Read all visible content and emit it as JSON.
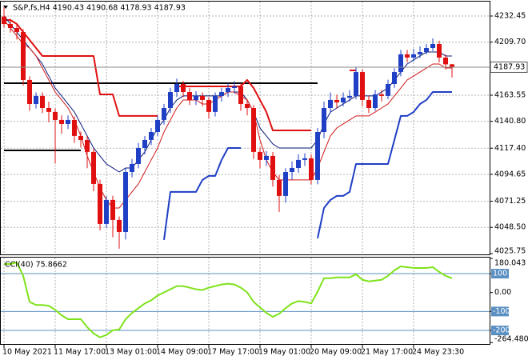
{
  "chart_data": [
    {
      "type": "candlestick",
      "title": "S&P,fs,H4  4190.43 4190.68 4178.93 4187.93",
      "categories": [
        "10 May 2021",
        null,
        null,
        null,
        null,
        null,
        null,
        null,
        "11 May 17:00",
        null,
        null,
        null,
        null,
        null,
        null,
        null,
        "13 May 01:00",
        null,
        null,
        null,
        null,
        null,
        null,
        null,
        "14 May 09:00",
        null,
        null,
        null,
        null,
        null,
        null,
        null,
        "17 May 17:00",
        null,
        null,
        null,
        null,
        null,
        null,
        null,
        "19 May 01:00",
        null,
        null,
        null,
        null,
        null,
        null,
        null,
        "20 May 09:00",
        null,
        null,
        null,
        null,
        null,
        null,
        null,
        "21 May 17:00",
        null,
        null,
        null,
        null,
        null,
        null,
        null,
        "24 May 23:30",
        null,
        null,
        null,
        null,
        null,
        null
      ],
      "open": [
        4232.0,
        4225.5,
        4222.0,
        4218.5,
        4176.8,
        4155.9,
        4162.9,
        4152.4,
        4149.0,
        4142.0,
        4138.5,
        4142.0,
        4128.1,
        4124.6,
        4114.2,
        4086.3,
        4051.5,
        4072.4,
        4055.0,
        4044.5,
        4096.7,
        4103.7,
        4117.6,
        4124.6,
        4131.5,
        4142.0,
        4152.4,
        4166.3,
        4173.3,
        4166.3,
        4159.4,
        4162.9,
        4159.4,
        4149.0,
        4162.9,
        4166.3,
        4169.8,
        4171.2,
        4155.9,
        4152.4,
        4114.2,
        4107.2,
        4110.7,
        4089.8,
        4075.9,
        4096.7,
        4100.2,
        4107.2,
        4108.6,
        4089.8,
        4131.5,
        4152.4,
        4159.4,
        4157.3,
        4161.4,
        4162.9,
        4183.7,
        4159.4,
        4152.4,
        4164.2,
        4162.9,
        4173.3,
        4183.7,
        4199.1,
        4196.3,
        4199.1,
        4201.1,
        4204.6,
        4208.1,
        4196.3,
        4190.43
      ],
      "high": [
        4240.0,
        4230.0,
        4226.0,
        4221.0,
        4180.0,
        4166.0,
        4166.0,
        4158.0,
        4152.0,
        4146.0,
        4146.0,
        4145.0,
        4132.0,
        4128.0,
        4117.0,
        4090.0,
        4076.0,
        4076.0,
        4058.0,
        4100.0,
        4108.0,
        4122.0,
        4128.0,
        4135.0,
        4146.0,
        4156.0,
        4170.0,
        4178.0,
        4176.0,
        4170.0,
        4167.0,
        4166.0,
        4162.0,
        4166.0,
        4170.0,
        4174.0,
        4176.0,
        4174.0,
        4160.0,
        4155.0,
        4118.0,
        4115.0,
        4114.0,
        4094.0,
        4100.0,
        4106.0,
        4112.0,
        4113.0,
        4112.0,
        4135.0,
        4158.0,
        4166.0,
        4164.0,
        4166.0,
        4168.0,
        4188.0,
        4186.0,
        4163.0,
        4168.0,
        4168.0,
        4177.0,
        4187.0,
        4203.0,
        4203.0,
        4204.0,
        4206.0,
        4208.0,
        4213.0,
        4211.0,
        4199.0,
        4190.68
      ],
      "low": [
        4222.5,
        4218.0,
        4212.0,
        4172.0,
        4150.0,
        4152.0,
        4148.0,
        4140.0,
        4104.0,
        4130.0,
        4134.0,
        4122.0,
        4118.0,
        4100.0,
        4080.0,
        4046.0,
        4048.0,
        4040.0,
        4030.0,
        4038.0,
        4092.0,
        4100.0,
        4112.0,
        4120.0,
        4128.0,
        4138.0,
        4148.0,
        4162.0,
        4162.0,
        4155.0,
        4155.0,
        4154.0,
        4143.0,
        4145.0,
        4158.0,
        4162.0,
        4165.0,
        4150.0,
        4146.0,
        4108.0,
        4100.0,
        4102.0,
        4084.0,
        4062.0,
        4070.0,
        4090.0,
        4096.0,
        4102.0,
        4086.0,
        4086.0,
        4126.0,
        4148.0,
        4152.0,
        4154.0,
        4158.0,
        4160.0,
        4154.0,
        4148.0,
        4150.0,
        4158.0,
        4160.0,
        4170.0,
        4180.0,
        4192.0,
        4193.0,
        4196.0,
        4199.0,
        4202.0,
        4192.0,
        4186.0,
        4178.93
      ],
      "close": [
        4225.5,
        4222.0,
        4218.5,
        4176.8,
        4155.9,
        4162.9,
        4152.4,
        4149.0,
        4142.0,
        4138.5,
        4142.0,
        4128.1,
        4124.6,
        4114.2,
        4086.3,
        4051.5,
        4072.4,
        4055.0,
        4044.5,
        4096.7,
        4103.7,
        4117.6,
        4124.6,
        4131.5,
        4142.0,
        4152.4,
        4166.3,
        4173.3,
        4166.3,
        4159.4,
        4162.9,
        4159.4,
        4149.0,
        4162.9,
        4166.3,
        4169.8,
        4171.2,
        4155.9,
        4152.4,
        4114.2,
        4107.2,
        4110.7,
        4089.8,
        4075.9,
        4096.7,
        4100.2,
        4107.2,
        4108.6,
        4089.8,
        4131.5,
        4152.4,
        4159.4,
        4157.3,
        4161.4,
        4162.9,
        4183.7,
        4159.4,
        4152.4,
        4164.2,
        4162.9,
        4173.3,
        4183.7,
        4199.1,
        4196.3,
        4199.1,
        4201.1,
        4204.6,
        4208.1,
        4196.3,
        4190.43,
        4187.93
      ],
      "up_color": "#1f3fc4",
      "down_color": "#e01010",
      "series": [
        {
          "color": "#000000",
          "width": 2,
          "values": [
            4174.0,
            4174.0,
            4174.0,
            4174.0,
            4174.0,
            4174.0,
            4174.0,
            4174.0,
            4174.0,
            4174.0,
            4174.0,
            4174.0,
            4174.0,
            4174.0,
            4174.0,
            4174.0,
            4174.0,
            4174.0,
            4174.0,
            4174.0,
            4174.0,
            4174.0,
            4174.0,
            4174.0,
            4174.0,
            4174.0,
            4174.0,
            4174.0,
            4174.0,
            4174.0,
            4174.0,
            4174.0,
            4174.0,
            4174.0,
            4174.0,
            4174.0,
            4174.0,
            4174.0,
            4174.0,
            4174.0,
            4174.0,
            4174.0,
            4174.0,
            4174.0,
            4174.0,
            4174.0,
            4174.0,
            4174.0,
            4174.0,
            4174.0,
            null,
            null,
            null,
            null,
            null,
            null,
            null,
            null,
            null,
            null,
            null,
            null,
            null,
            null,
            null,
            null,
            null,
            null,
            null,
            null,
            null
          ]
        },
        {
          "color": "#000000",
          "width": 2,
          "values": [
            4115.5,
            4115.5,
            4115.5,
            4115.5,
            4115.5,
            4115.5,
            4115.5,
            4115.5,
            4115.5,
            4115.5,
            4115.5,
            4115.5,
            4115.5,
            null,
            null,
            null,
            null,
            null,
            null,
            null,
            null,
            null,
            null,
            null,
            null,
            null,
            null,
            null,
            null,
            null,
            null,
            null,
            null,
            null,
            null,
            null,
            null,
            null,
            null,
            null,
            null,
            null,
            null,
            null,
            null,
            null,
            null,
            null,
            null,
            null,
            null,
            null,
            null,
            null,
            null,
            null,
            null,
            null,
            null,
            null,
            null,
            null,
            null,
            null,
            null,
            null,
            null,
            null,
            null,
            null,
            null
          ]
        },
        {
          "color": "#e01010",
          "width": 2,
          "values": [
            4229.0,
            4229.0,
            4225.5,
            4218.5,
            4211.6,
            4204.6,
            4197.7,
            4197.7,
            4197.7,
            4197.7,
            4197.7,
            4197.7,
            4197.7,
            4197.7,
            4197.7,
            4164.2,
            4164.2,
            4164.2,
            4145.5,
            4145.5,
            4145.5,
            4145.5,
            4145.5,
            4145.5,
            4145.5,
            null,
            null,
            4171.2,
            4171.2,
            4171.2,
            4171.2,
            4171.2,
            4171.2,
            4171.2,
            4171.2,
            4171.2,
            4171.2,
            4171.2,
            4176.8,
            4169.8,
            4159.4,
            4148.9,
            4132.9,
            4132.9,
            4132.9,
            4132.9,
            4132.9,
            4132.9,
            4132.9,
            null,
            null,
            null,
            null,
            null,
            4185.1,
            4185.1,
            null,
            null,
            null,
            null,
            null,
            null,
            null,
            null,
            null,
            null,
            null,
            null,
            null,
            null,
            null
          ]
        },
        {
          "color": "#1f3fc4",
          "width": 2,
          "values": [
            null,
            null,
            null,
            null,
            null,
            null,
            null,
            null,
            null,
            null,
            null,
            null,
            null,
            null,
            null,
            null,
            null,
            null,
            null,
            null,
            null,
            null,
            null,
            null,
            null,
            4037.6,
            4079.4,
            4079.4,
            4079.4,
            4079.4,
            4079.4,
            4089.8,
            4093.3,
            4093.3,
            4107.2,
            4117.6,
            4117.6,
            4117.6,
            null,
            null,
            null,
            null,
            null,
            null,
            null,
            null,
            null,
            null,
            null,
            4039.0,
            4065.4,
            4072.4,
            4075.9,
            4075.9,
            4079.4,
            4103.7,
            4103.7,
            4103.7,
            4103.7,
            4103.7,
            4103.7,
            4124.6,
            4145.5,
            4145.5,
            4148.9,
            4155.9,
            4159.4,
            4166.3,
            4166.3,
            4166.3,
            4166.3
          ]
        },
        {
          "color": "#0a1a7a",
          "width": 1,
          "values": [
            4232.5,
            4225.5,
            4218.5,
            4211.6,
            4204.6,
            4197.7,
            4190.7,
            4180.2,
            4169.8,
            4162.9,
            4155.9,
            4148.9,
            4138.5,
            4128.1,
            4117.6,
            4110.7,
            4103.7,
            4100.2,
            4096.7,
            4100.2,
            4100.2,
            4107.2,
            4114.2,
            4124.6,
            4135.0,
            4142.0,
            4152.4,
            4159.4,
            4162.9,
            4162.9,
            4162.9,
            4162.9,
            4162.9,
            4162.9,
            4162.9,
            4166.3,
            4166.3,
            4166.3,
            4159.4,
            4148.9,
            4135.0,
            4128.1,
            4121.1,
            4117.6,
            4117.6,
            4117.6,
            4117.6,
            4117.6,
            4117.6,
            4124.6,
            4138.5,
            4148.9,
            4152.4,
            4155.9,
            4159.4,
            4162.9,
            4162.9,
            4162.9,
            4162.9,
            4166.3,
            4169.8,
            4176.8,
            4183.7,
            4190.7,
            4194.2,
            4197.7,
            4201.1,
            4201.1,
            4201.1,
            4197.7,
            4197.7
          ]
        },
        {
          "color": "#d01818",
          "width": 1,
          "values": [
            4229.0,
            4222.0,
            4215.1,
            4208.1,
            4204.6,
            4197.7,
            4187.2,
            4176.8,
            4166.3,
            4159.4,
            4152.4,
            4142.0,
            4128.1,
            4110.7,
            4096.7,
            4082.8,
            4072.4,
            4065.4,
            4065.4,
            4072.4,
            4079.4,
            4086.3,
            4096.7,
            4107.2,
            4117.6,
            4131.5,
            4142.0,
            4152.4,
            4159.4,
            4159.4,
            4159.4,
            4155.9,
            4155.9,
            4159.4,
            4162.9,
            4166.3,
            4166.3,
            4162.9,
            4159.4,
            4148.9,
            4124.6,
            4107.2,
            4096.7,
            4089.8,
            4089.8,
            4089.8,
            4089.8,
            4089.8,
            4089.8,
            4100.2,
            4114.2,
            4128.1,
            4135.0,
            4138.5,
            4142.0,
            4145.5,
            4145.5,
            4145.5,
            4148.9,
            4152.4,
            4155.9,
            4162.9,
            4169.8,
            4176.8,
            4180.2,
            4183.7,
            4187.2,
            4190.7,
            4190.7,
            4187.2,
            4187.2
          ]
        }
      ],
      "ylim": [
        4025,
        4244.3
      ],
      "yticks": [
        4232.45,
        {
          "value": 4209.7,
          "label": "4209.70"
        },
        4163.55,
        {
          "value": 4140.8,
          "label": "4140.80"
        },
        {
          "value": 4117.4,
          "label": "4117.40"
        },
        4094.65,
        4071.25,
        {
          "value": 4048.5,
          "label": "4048.50"
        },
        4025.75
      ],
      "grid": true
    },
    {
      "type": "line",
      "title": "CCI(40) 75.8662",
      "color": "#7ee21a",
      "values": [
        150.9,
        150.9,
        159.2,
        88.4,
        -49.1,
        -65.8,
        -65.8,
        -70.0,
        -90.8,
        -120.0,
        -140.8,
        -140.8,
        -140.8,
        -182.5,
        -215.8,
        -236.6,
        -224.1,
        -199.1,
        -195.0,
        -140.8,
        -107.5,
        -82.5,
        -57.5,
        -40.8,
        -15.8,
        0.9,
        17.5,
        34.2,
        34.2,
        25.9,
        17.5,
        13.4,
        25.9,
        34.2,
        42.5,
        46.7,
        42.5,
        25.9,
        0.9,
        -49.1,
        -78.3,
        -107.5,
        -128.3,
        -111.6,
        -82.5,
        -57.5,
        -45.0,
        -49.1,
        -57.5,
        5.0,
        75.9,
        75.9,
        80.0,
        80.0,
        80.0,
        96.7,
        67.5,
        59.2,
        63.3,
        67.5,
        88.4,
        117.5,
        138.3,
        134.2,
        130.0,
        130.0,
        130.0,
        134.2,
        109.2,
        88.4,
        75.8662
      ],
      "ylim": [
        -264.4806,
        180.043
      ],
      "yticks": [
        180.043,
        100,
        {
          "value": 0,
          "label": "0.00"
        },
        -100,
        -200,
        -264.4806
      ],
      "levels": [
        100,
        -100,
        -200
      ],
      "level_color": "#5a8fc2"
    }
  ]
}
